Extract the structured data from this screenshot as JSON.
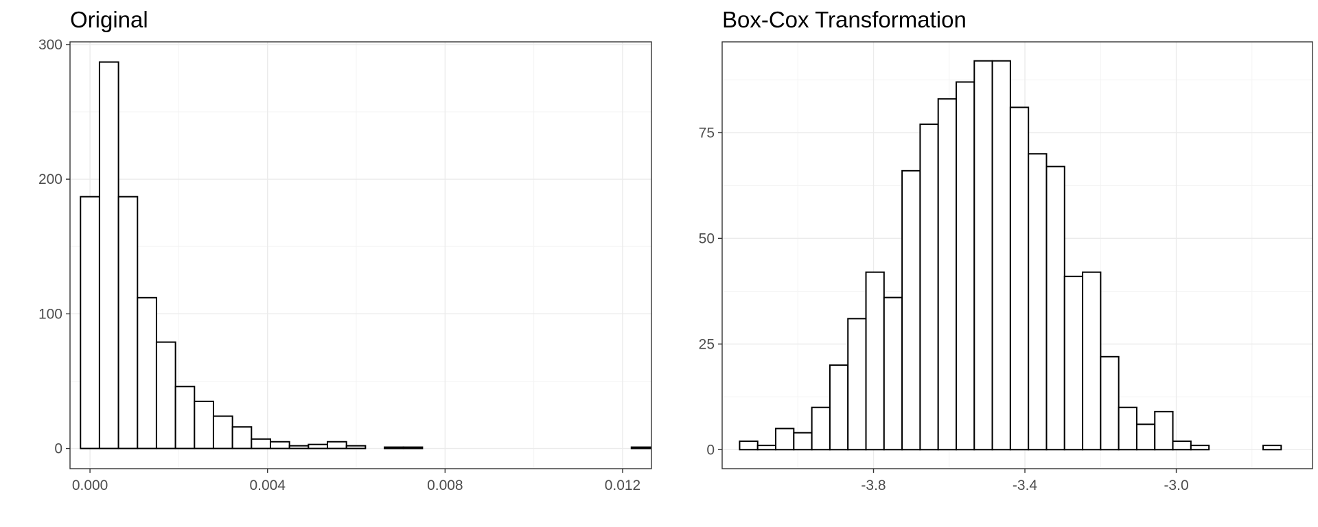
{
  "chart_data": [
    {
      "type": "bar",
      "title": "Original",
      "xlabel": "",
      "ylabel": "",
      "grid": true,
      "xlim": [
        -0.00045,
        0.01265
      ],
      "ylim": [
        -15,
        302
      ],
      "x_ticks": [
        0.0,
        0.004,
        0.008,
        0.012
      ],
      "x_tick_labels": [
        "0.000",
        "0.004",
        "0.008",
        "0.012"
      ],
      "y_ticks": [
        0,
        100,
        200,
        300
      ],
      "y_tick_labels": [
        "0",
        "100",
        "200",
        "300"
      ],
      "bin_width": 0.000428,
      "bin_centers": [
        0.0,
        0.000428,
        0.000856,
        0.001284,
        0.001712,
        0.00214,
        0.002568,
        0.002996,
        0.003424,
        0.003852,
        0.00428,
        0.004708,
        0.005136,
        0.005564,
        0.005992,
        0.00642,
        0.006848,
        0.007276,
        0.007704,
        0.008132,
        0.00856,
        0.008988,
        0.009416,
        0.009844,
        0.010272,
        0.0107,
        0.011128,
        0.011556,
        0.011984,
        0.012412
      ],
      "values": [
        187,
        287,
        187,
        112,
        79,
        46,
        35,
        24,
        16,
        7,
        5,
        2,
        3,
        5,
        2,
        0,
        1,
        1,
        0,
        0,
        0,
        0,
        0,
        0,
        0,
        0,
        0,
        0,
        0,
        1
      ]
    },
    {
      "type": "bar",
      "title": "Box-Cox Transformation",
      "xlabel": "",
      "ylabel": "",
      "grid": true,
      "xlim": [
        -4.2,
        -2.64
      ],
      "ylim": [
        -4.5,
        96.5
      ],
      "x_ticks": [
        -3.8,
        -3.4,
        -3.0
      ],
      "x_tick_labels": [
        "-3.8",
        "-3.4",
        "-3.0"
      ],
      "y_ticks": [
        0,
        25,
        50,
        75
      ],
      "y_tick_labels": [
        "0",
        "25",
        "50",
        "75"
      ],
      "bin_width": 0.0477,
      "bin_centers": [
        -4.13,
        -4.0823,
        -4.0346,
        -3.9869,
        -3.9392,
        -3.8915,
        -3.8438,
        -3.7961,
        -3.7484,
        -3.7007,
        -3.653,
        -3.6053,
        -3.5576,
        -3.5099,
        -3.4622,
        -3.4145,
        -3.3668,
        -3.3191,
        -3.2714,
        -3.2237,
        -3.176,
        -3.1283,
        -3.0806,
        -3.0329,
        -2.9852,
        -2.9375,
        -2.8898,
        -2.8421,
        -2.7944,
        -2.7467
      ],
      "values": [
        2,
        1,
        5,
        4,
        10,
        20,
        31,
        42,
        36,
        66,
        77,
        83,
        87,
        92,
        92,
        81,
        70,
        67,
        41,
        42,
        22,
        10,
        6,
        9,
        2,
        1,
        0,
        0,
        0,
        1
      ]
    }
  ]
}
